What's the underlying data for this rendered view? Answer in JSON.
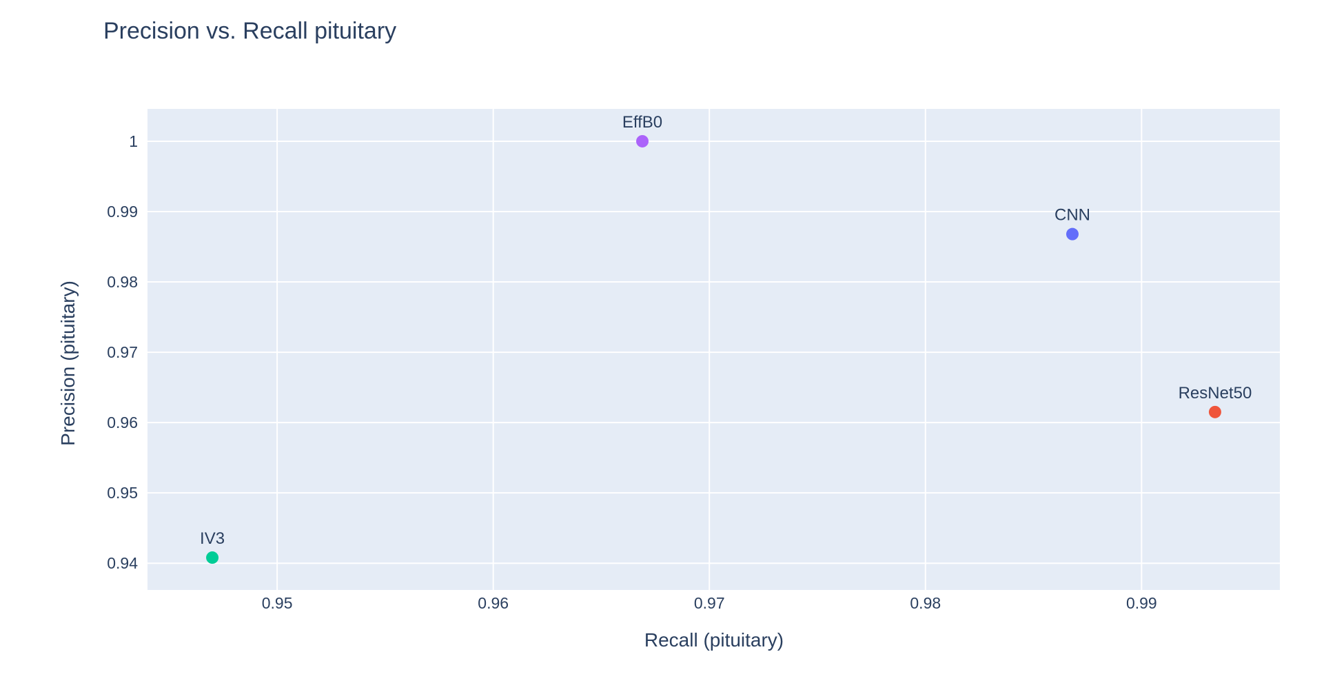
{
  "chart_data": {
    "type": "scatter",
    "title": "Precision vs. Recall pituitary",
    "xlabel": "Recall (pituitary)",
    "ylabel": "Precision (pituitary)",
    "xlim": [
      0.944,
      0.9964
    ],
    "ylim": [
      0.9362,
      1.0046
    ],
    "xticks": [
      0.95,
      0.96,
      0.97,
      0.98,
      0.99
    ],
    "xtick_labels": [
      "0.95",
      "0.96",
      "0.97",
      "0.98",
      "0.99"
    ],
    "yticks": [
      0.94,
      0.95,
      0.96,
      0.97,
      0.98,
      0.99,
      1.0
    ],
    "ytick_labels": [
      "0.94",
      "0.95",
      "0.96",
      "0.97",
      "0.98",
      "0.99",
      "1"
    ],
    "grid": true,
    "points": [
      {
        "label": "EffB0",
        "x": 0.9669,
        "y": 1.0,
        "color": "#ab63fa"
      },
      {
        "label": "CNN",
        "x": 0.9868,
        "y": 0.9868,
        "color": "#636efa"
      },
      {
        "label": "ResNet50",
        "x": 0.9934,
        "y": 0.9615,
        "color": "#ef553b"
      },
      {
        "label": "IV3",
        "x": 0.947,
        "y": 0.9408,
        "color": "#00cc96"
      }
    ]
  },
  "colors": {
    "plot_background": "#e5ecf6",
    "grid": "#ffffff",
    "text": "#2a3f5f"
  }
}
